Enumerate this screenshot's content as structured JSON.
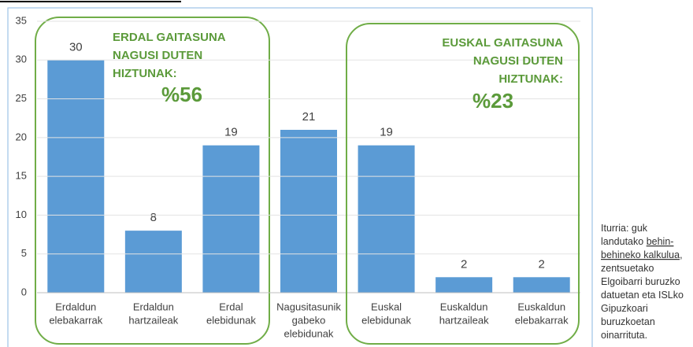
{
  "chart_data": {
    "type": "bar",
    "categories": [
      [
        "Erdaldun",
        "elebakarrak"
      ],
      [
        "Erdaldun",
        "hartzaileak"
      ],
      [
        "Erdal",
        "elebidunak"
      ],
      [
        "Nagusitasunik",
        "gabeko",
        "elebidunak"
      ],
      [
        "Euskal",
        "elebidunak"
      ],
      [
        "Euskaldun",
        "hartzaileak"
      ],
      [
        "Euskaldun",
        "elebakarrak"
      ]
    ],
    "values": [
      30,
      8,
      19,
      21,
      19,
      2,
      2
    ],
    "color": "#5b9bd5",
    "ylim": [
      0,
      35
    ],
    "yticks": [
      0,
      5,
      10,
      15,
      20,
      25,
      30,
      35
    ],
    "grid": true,
    "annotations": {
      "left": {
        "lines": [
          "ERDAL GAITASUNA",
          "NAGUSI DUTEN",
          "HIZTUNAK:"
        ],
        "share": "%56"
      },
      "right": {
        "lines": [
          "EUSKAL GAITASUNA",
          "NAGUSI DUTEN",
          "HIZTUNAK:"
        ],
        "share": "%23"
      }
    },
    "source": [
      [
        {
          "text": "Iturria: guk"
        }
      ],
      [
        {
          "text": "landutako "
        },
        {
          "text": "behin-",
          "underline": true
        }
      ],
      [
        {
          "text": "behineko kalkulua",
          "underline": true
        },
        {
          "text": ","
        }
      ],
      [
        {
          "text": "zentsuetako"
        }
      ],
      [
        {
          "text": "Elgoibarri buruzko"
        }
      ],
      [
        {
          "text": "datuetan eta ISLko"
        }
      ],
      [
        {
          "text": "Gipuzkoari"
        }
      ],
      [
        {
          "text": "buruzkoetan"
        }
      ],
      [
        {
          "text": "oinarrituta."
        }
      ]
    ]
  }
}
